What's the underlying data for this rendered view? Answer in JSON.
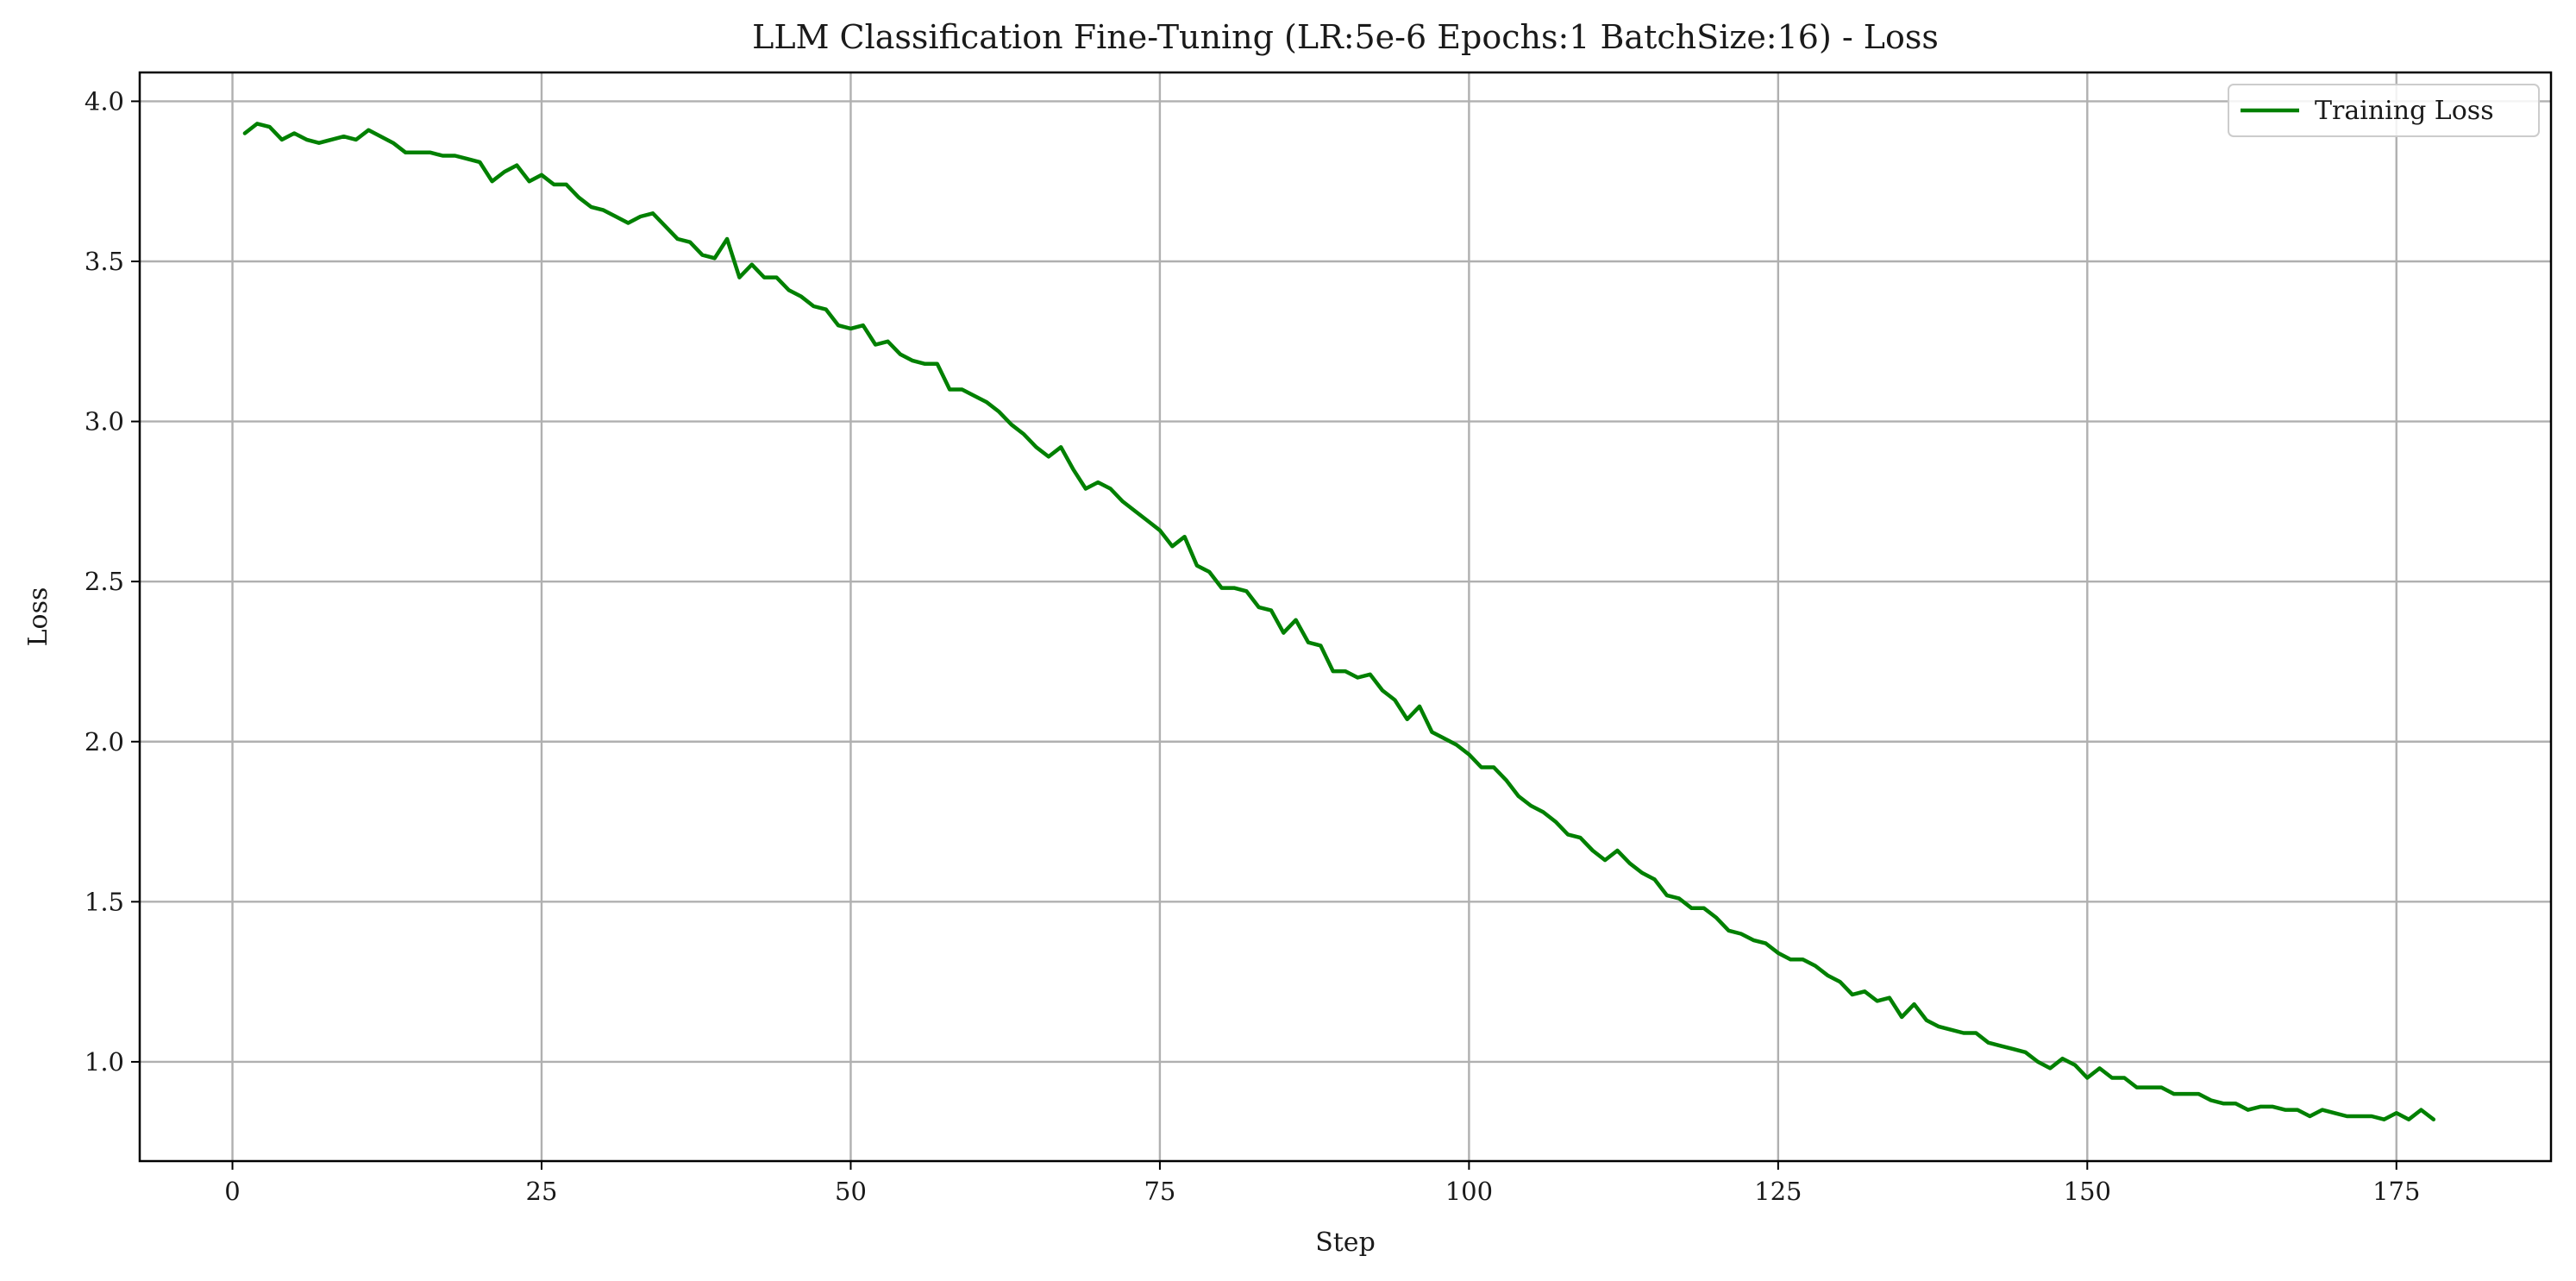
{
  "chart_data": {
    "type": "line",
    "title": "LLM Classification Fine-Tuning (LR:5e-6 Epochs:1 BatchSize:16) - Loss",
    "xlabel": "Step",
    "ylabel": "Loss",
    "xlim": [
      -7.5,
      187.5
    ],
    "ylim": [
      0.69,
      4.09
    ],
    "xticks": [
      0,
      25,
      50,
      75,
      100,
      125,
      150,
      175
    ],
    "yticks": [
      1.0,
      1.5,
      2.0,
      2.5,
      3.0,
      3.5,
      4.0
    ],
    "xtick_labels": [
      "0",
      "25",
      "50",
      "75",
      "100",
      "125",
      "150",
      "175"
    ],
    "ytick_labels": [
      "1.0",
      "1.5",
      "2.0",
      "2.5",
      "3.0",
      "3.5",
      "4.0"
    ],
    "grid": true,
    "legend_position": "top-right",
    "series": [
      {
        "name": "Training Loss",
        "color": "#008000",
        "x": [
          1,
          2,
          3,
          4,
          5,
          6,
          7,
          8,
          9,
          10,
          11,
          12,
          13,
          14,
          15,
          16,
          17,
          18,
          19,
          20,
          21,
          22,
          23,
          24,
          25,
          26,
          27,
          28,
          29,
          30,
          31,
          32,
          33,
          34,
          35,
          36,
          37,
          38,
          39,
          40,
          41,
          42,
          43,
          44,
          45,
          46,
          47,
          48,
          49,
          50,
          51,
          52,
          53,
          54,
          55,
          56,
          57,
          58,
          59,
          60,
          61,
          62,
          63,
          64,
          65,
          66,
          67,
          68,
          69,
          70,
          71,
          72,
          73,
          74,
          75,
          76,
          77,
          78,
          79,
          80,
          81,
          82,
          83,
          84,
          85,
          86,
          87,
          88,
          89,
          90,
          91,
          92,
          93,
          94,
          95,
          96,
          97,
          98,
          99,
          100,
          101,
          102,
          103,
          104,
          105,
          106,
          107,
          108,
          109,
          110,
          111,
          112,
          113,
          114,
          115,
          116,
          117,
          118,
          119,
          120,
          121,
          122,
          123,
          124,
          125,
          126,
          127,
          128,
          129,
          130,
          131,
          132,
          133,
          134,
          135,
          136,
          137,
          138,
          139,
          140,
          141,
          142,
          143,
          144,
          145,
          146,
          147,
          148,
          149,
          150,
          151,
          152,
          153,
          154,
          155,
          156,
          157,
          158,
          159,
          160,
          161,
          162,
          163,
          164,
          165,
          166,
          167,
          168,
          169,
          170,
          171,
          172,
          173,
          174,
          175,
          176,
          177,
          178
        ],
        "values": [
          3.9,
          3.93,
          3.92,
          3.88,
          3.9,
          3.88,
          3.87,
          3.88,
          3.89,
          3.88,
          3.91,
          3.89,
          3.87,
          3.84,
          3.84,
          3.84,
          3.83,
          3.83,
          3.82,
          3.81,
          3.75,
          3.78,
          3.8,
          3.75,
          3.77,
          3.74,
          3.74,
          3.7,
          3.67,
          3.66,
          3.64,
          3.62,
          3.64,
          3.65,
          3.61,
          3.57,
          3.56,
          3.52,
          3.51,
          3.57,
          3.45,
          3.49,
          3.45,
          3.45,
          3.41,
          3.39,
          3.36,
          3.35,
          3.3,
          3.29,
          3.3,
          3.24,
          3.25,
          3.21,
          3.19,
          3.18,
          3.18,
          3.1,
          3.1,
          3.08,
          3.06,
          3.03,
          2.99,
          2.96,
          2.92,
          2.89,
          2.92,
          2.85,
          2.79,
          2.81,
          2.79,
          2.75,
          2.72,
          2.69,
          2.66,
          2.61,
          2.64,
          2.55,
          2.53,
          2.48,
          2.48,
          2.47,
          2.42,
          2.41,
          2.34,
          2.38,
          2.31,
          2.3,
          2.22,
          2.22,
          2.2,
          2.21,
          2.16,
          2.13,
          2.07,
          2.11,
          2.03,
          2.01,
          1.99,
          1.96,
          1.92,
          1.92,
          1.88,
          1.83,
          1.8,
          1.78,
          1.75,
          1.71,
          1.7,
          1.66,
          1.63,
          1.66,
          1.62,
          1.59,
          1.57,
          1.52,
          1.51,
          1.48,
          1.48,
          1.45,
          1.41,
          1.4,
          1.38,
          1.37,
          1.34,
          1.32,
          1.32,
          1.3,
          1.27,
          1.25,
          1.21,
          1.22,
          1.19,
          1.2,
          1.14,
          1.18,
          1.13,
          1.11,
          1.1,
          1.09,
          1.09,
          1.06,
          1.05,
          1.04,
          1.03,
          1.0,
          0.98,
          1.01,
          0.99,
          0.95,
          0.98,
          0.95,
          0.95,
          0.92,
          0.92,
          0.92,
          0.9,
          0.9,
          0.9,
          0.88,
          0.87,
          0.87,
          0.85,
          0.86,
          0.86,
          0.85,
          0.85,
          0.83,
          0.85,
          0.84,
          0.83,
          0.83,
          0.83,
          0.82,
          0.84,
          0.82,
          0.85,
          0.82
        ]
      }
    ]
  }
}
